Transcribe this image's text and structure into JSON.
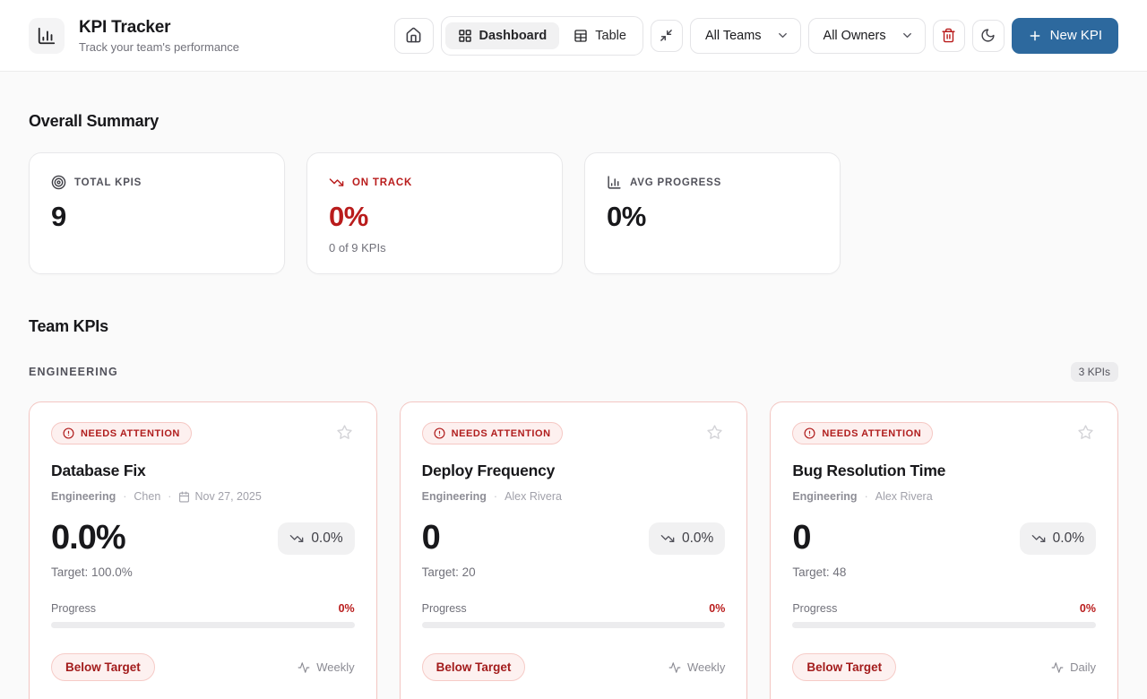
{
  "header": {
    "title": "KPI Tracker",
    "subtitle": "Track your team's performance",
    "nav": {
      "dashboard": "Dashboard",
      "table": "Table"
    },
    "team_filter": "All Teams",
    "owner_filter": "All Owners",
    "new_kpi": "New KPI"
  },
  "summary": {
    "heading": "Overall Summary",
    "cards": [
      {
        "label": "TOTAL KPIS",
        "value": "9"
      },
      {
        "label": "ON TRACK",
        "value": "0%",
        "sub": "0 of 9 KPIs"
      },
      {
        "label": "AVG PROGRESS",
        "value": "0%"
      }
    ]
  },
  "team": {
    "heading": "Team KPIs",
    "group_name": "ENGINEERING",
    "group_badge": "3 KPIs",
    "cards": [
      {
        "status": "NEEDS ATTENTION",
        "title": "Database Fix",
        "team": "Engineering",
        "owner": "Chen",
        "date": "Nov 27, 2025",
        "value": "0.0%",
        "trend": "0.0%",
        "target": "Target: 100.0%",
        "progress_label": "Progress",
        "progress_value": "0%",
        "progress_pct": "0%",
        "status_pill": "Below Target",
        "frequency": "Weekly"
      },
      {
        "status": "NEEDS ATTENTION",
        "title": "Deploy Frequency",
        "team": "Engineering",
        "owner": "Alex Rivera",
        "value": "0",
        "trend": "0.0%",
        "target": "Target: 20",
        "progress_label": "Progress",
        "progress_value": "0%",
        "progress_pct": "0%",
        "status_pill": "Below Target",
        "frequency": "Weekly"
      },
      {
        "status": "NEEDS ATTENTION",
        "title": "Bug Resolution Time",
        "team": "Engineering",
        "owner": "Alex Rivera",
        "value": "0",
        "trend": "0.0%",
        "target": "Target: 48",
        "progress_label": "Progress",
        "progress_value": "0%",
        "progress_pct": "0%",
        "status_pill": "Below Target",
        "frequency": "Daily"
      }
    ]
  },
  "colors": {
    "accent_blue": "#2d699e",
    "danger": "#b91c1c",
    "warning_bg": "#fdf0ef"
  }
}
